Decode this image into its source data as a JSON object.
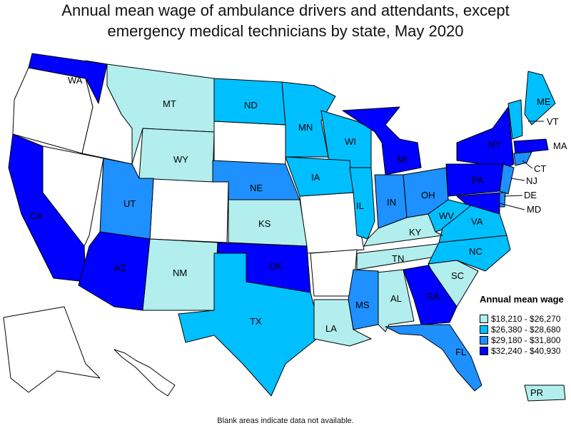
{
  "title_line1": "Annual mean wage of ambulance drivers and attendants, except",
  "title_line2": "emergency medical technicians by state, May 2020",
  "legend": {
    "title": "Annual mean wage",
    "items": [
      {
        "label": "$18,210 - $26,270",
        "color": "#b2eeee"
      },
      {
        "label": "$26,380 - $28,680",
        "color": "#00bfff"
      },
      {
        "label": "$29,180 - $31,800",
        "color": "#1e90ff"
      },
      {
        "label": "$32,240 - $40,930",
        "color": "#0000ff"
      }
    ]
  },
  "footnote": "Blank areas indicate data not available.",
  "states": {
    "WA": "4",
    "MT": "1",
    "ND": "2",
    "MN": "2",
    "WI": "2",
    "MI": "4",
    "ME": "2",
    "VT": "2",
    "NY": "4",
    "MA": "4",
    "CT": "3",
    "NJ": "3",
    "DE": "3",
    "MD": "4",
    "PA": "4",
    "WY": "1",
    "NE": "3",
    "IA": "2",
    "IL": "2",
    "IN": "3",
    "OH": "3",
    "WV": "2",
    "VA": "2",
    "KY": "1",
    "UT": "3",
    "CA": "4",
    "NV": "",
    "ID": "",
    "OR": "",
    "SD": "",
    "CO": "",
    "KS": "1",
    "MO": "",
    "AZ": "4",
    "NM": "1",
    "OK": "4",
    "TX": "2",
    "AR": "",
    "TN": "1",
    "NC": "2",
    "SC": "1",
    "GA": "4",
    "AL": "1",
    "MS": "3",
    "LA": "1",
    "FL": "3",
    "AK": "",
    "HI": "",
    "PR": "1"
  }
}
